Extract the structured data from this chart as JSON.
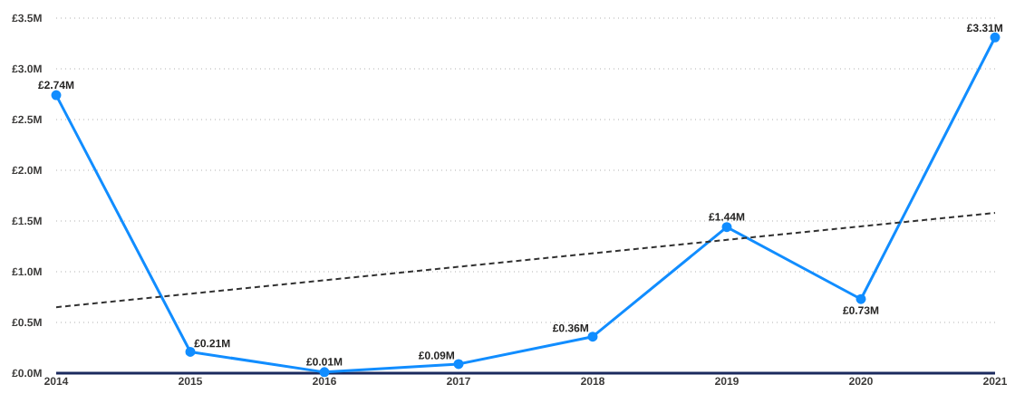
{
  "chart_data": {
    "type": "line",
    "x": [
      2014,
      2015,
      2016,
      2017,
      2018,
      2019,
      2020,
      2021
    ],
    "xlim": [
      2014,
      2021
    ],
    "xticks": [
      2014,
      2015,
      2016,
      2017,
      2018,
      2019,
      2020,
      2021
    ],
    "ylim": [
      0,
      3.5
    ],
    "yticks": [
      {
        "value": 0,
        "label": "£0.0M"
      },
      {
        "value": 0.5,
        "label": "£0.5M"
      },
      {
        "value": 1,
        "label": "£1.0M"
      },
      {
        "value": 1.5,
        "label": "£1.5M"
      },
      {
        "value": 2,
        "label": "£2.0M"
      },
      {
        "value": 2.5,
        "label": "£2.5M"
      },
      {
        "value": 3,
        "label": "£3.0M"
      },
      {
        "value": 3.5,
        "label": "£3.5M"
      }
    ],
    "grid": "y",
    "series": [
      {
        "color": "#118dff",
        "marker": "circle",
        "line_style": "solid",
        "values": [
          2.74,
          0.21,
          0.01,
          0.09,
          0.36,
          1.44,
          0.73,
          3.31
        ],
        "value_labels": [
          "£2.74M",
          "£0.21M",
          "£0.01M",
          "£0.09M",
          "£0.36M",
          "£1.44M",
          "£0.73M",
          "£3.31M"
        ]
      },
      {
        "color": "#333333",
        "marker": "none",
        "line_style": "dashed",
        "x": [
          2014,
          2021
        ],
        "values": [
          0.65,
          1.58
        ]
      }
    ]
  }
}
